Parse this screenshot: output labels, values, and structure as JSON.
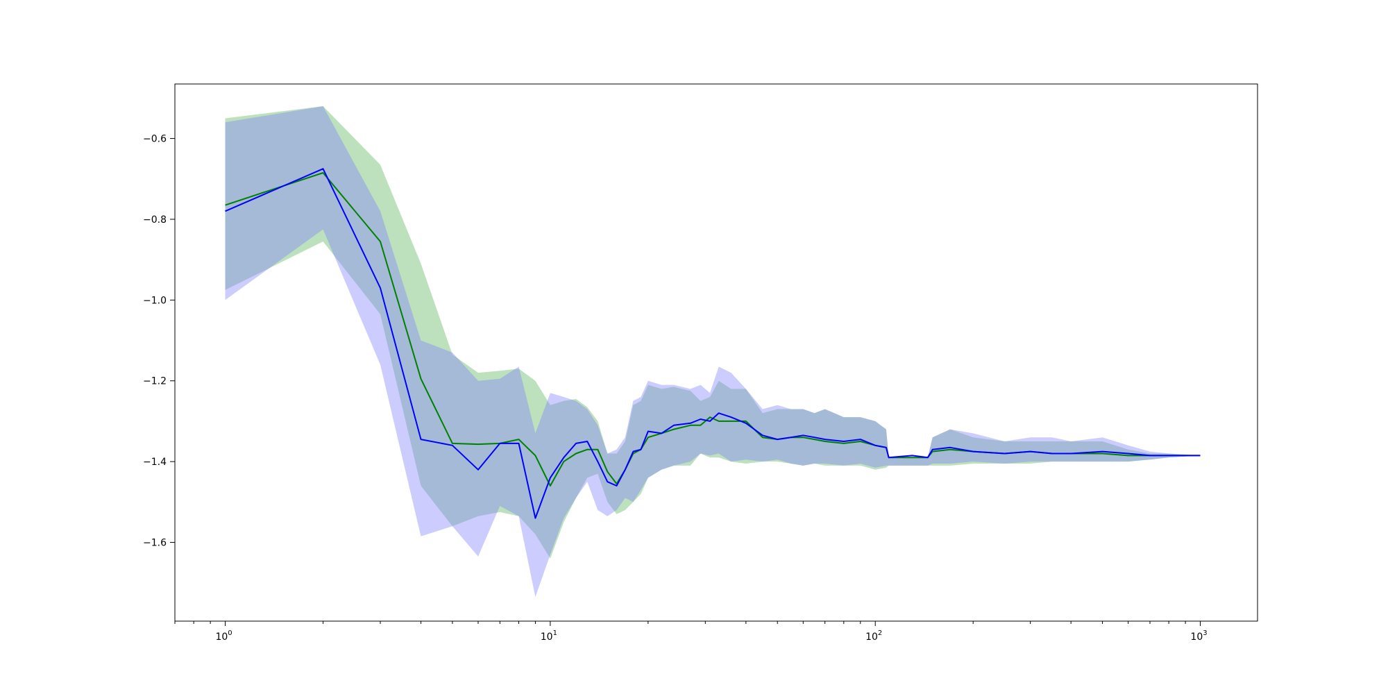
{
  "chart_data": {
    "type": "line",
    "title": "",
    "xlabel": "",
    "ylabel": "",
    "xscale": "log",
    "xlim": [
      0.7,
      1500
    ],
    "ylim": [
      -1.795,
      -0.465
    ],
    "grid": false,
    "legend": "none",
    "x_ticks": [
      {
        "value": 1,
        "base": "10",
        "exp": "0"
      },
      {
        "value": 10,
        "base": "10",
        "exp": "1"
      },
      {
        "value": 100,
        "base": "10",
        "exp": "2"
      },
      {
        "value": 1000,
        "base": "10",
        "exp": "3"
      }
    ],
    "y_ticks": [
      {
        "value": -0.6,
        "label": "−0.6"
      },
      {
        "value": -0.8,
        "label": "−0.8"
      },
      {
        "value": -1.0,
        "label": "−1.0"
      },
      {
        "value": -1.2,
        "label": "−1.2"
      },
      {
        "value": -1.4,
        "label": "−1.4"
      },
      {
        "value": -1.6,
        "label": "−1.6"
      }
    ],
    "series": [
      {
        "color": "#008000",
        "band_color": "#5bb35b",
        "x": [
          1,
          2,
          3,
          4,
          5,
          6,
          7,
          8,
          9,
          10,
          11,
          12,
          13,
          14,
          15,
          16,
          17,
          18,
          19,
          20,
          22,
          24,
          27,
          29,
          31,
          33,
          36,
          40,
          45,
          50,
          55,
          60,
          65,
          70,
          80,
          90,
          100,
          108,
          110,
          130,
          145,
          150,
          170,
          200,
          250,
          300,
          350,
          400,
          500,
          600,
          700,
          800,
          1000
        ],
        "values": [
          -0.765,
          -0.685,
          -0.855,
          -1.195,
          -1.355,
          -1.357,
          -1.355,
          -1.345,
          -1.385,
          -1.46,
          -1.4,
          -1.38,
          -1.37,
          -1.37,
          -1.425,
          -1.455,
          -1.42,
          -1.38,
          -1.37,
          -1.34,
          -1.33,
          -1.32,
          -1.31,
          -1.31,
          -1.29,
          -1.3,
          -1.3,
          -1.3,
          -1.34,
          -1.345,
          -1.34,
          -1.34,
          -1.345,
          -1.35,
          -1.355,
          -1.35,
          -1.36,
          -1.365,
          -1.39,
          -1.39,
          -1.39,
          -1.375,
          -1.37,
          -1.375,
          -1.38,
          -1.375,
          -1.38,
          -1.38,
          -1.38,
          -1.385,
          -1.385,
          -1.385,
          -1.385
        ],
        "lower": [
          -0.975,
          -0.855,
          -1.035,
          -1.46,
          -1.56,
          -1.535,
          -1.525,
          -1.535,
          -1.58,
          -1.64,
          -1.55,
          -1.49,
          -1.44,
          -1.43,
          -1.5,
          -1.53,
          -1.52,
          -1.5,
          -1.48,
          -1.44,
          -1.42,
          -1.41,
          -1.41,
          -1.38,
          -1.39,
          -1.39,
          -1.4,
          -1.405,
          -1.4,
          -1.4,
          -1.405,
          -1.41,
          -1.405,
          -1.41,
          -1.41,
          -1.41,
          -1.42,
          -1.415,
          -1.41,
          -1.41,
          -1.41,
          -1.41,
          -1.41,
          -1.405,
          -1.405,
          -1.405,
          -1.4,
          -1.4,
          -1.4,
          -1.4,
          -1.395,
          -1.39,
          -1.385
        ],
        "upper": [
          -0.55,
          -0.52,
          -0.665,
          -0.91,
          -1.135,
          -1.18,
          -1.175,
          -1.17,
          -1.2,
          -1.26,
          -1.25,
          -1.245,
          -1.265,
          -1.3,
          -1.38,
          -1.38,
          -1.35,
          -1.26,
          -1.25,
          -1.21,
          -1.22,
          -1.215,
          -1.225,
          -1.25,
          -1.24,
          -1.2,
          -1.22,
          -1.22,
          -1.28,
          -1.27,
          -1.27,
          -1.27,
          -1.28,
          -1.27,
          -1.29,
          -1.29,
          -1.3,
          -1.32,
          -1.39,
          -1.39,
          -1.39,
          -1.34,
          -1.32,
          -1.34,
          -1.35,
          -1.35,
          -1.35,
          -1.35,
          -1.35,
          -1.37,
          -1.38,
          -1.38,
          -1.385
        ]
      },
      {
        "color": "#0000ff",
        "band_color": "#8080ff",
        "x": [
          1,
          2,
          3,
          4,
          5,
          6,
          7,
          8,
          9,
          10,
          11,
          12,
          13,
          14,
          15,
          16,
          17,
          18,
          19,
          20,
          22,
          24,
          27,
          29,
          31,
          33,
          36,
          40,
          45,
          50,
          55,
          60,
          65,
          70,
          80,
          90,
          100,
          108,
          110,
          130,
          145,
          150,
          170,
          200,
          250,
          300,
          350,
          400,
          500,
          600,
          700,
          800,
          1000
        ],
        "values": [
          -0.78,
          -0.675,
          -0.97,
          -1.345,
          -1.36,
          -1.42,
          -1.355,
          -1.355,
          -1.54,
          -1.44,
          -1.39,
          -1.355,
          -1.35,
          -1.4,
          -1.45,
          -1.46,
          -1.42,
          -1.375,
          -1.37,
          -1.325,
          -1.33,
          -1.31,
          -1.305,
          -1.295,
          -1.3,
          -1.28,
          -1.29,
          -1.305,
          -1.335,
          -1.345,
          -1.34,
          -1.335,
          -1.34,
          -1.345,
          -1.35,
          -1.345,
          -1.36,
          -1.365,
          -1.39,
          -1.385,
          -1.39,
          -1.37,
          -1.365,
          -1.375,
          -1.38,
          -1.375,
          -1.38,
          -1.38,
          -1.375,
          -1.38,
          -1.385,
          -1.385,
          -1.385
        ],
        "lower": [
          -1.0,
          -0.825,
          -1.16,
          -1.585,
          -1.56,
          -1.635,
          -1.51,
          -1.535,
          -1.735,
          -1.63,
          -1.54,
          -1.49,
          -1.45,
          -1.52,
          -1.535,
          -1.52,
          -1.49,
          -1.5,
          -1.47,
          -1.44,
          -1.42,
          -1.41,
          -1.4,
          -1.38,
          -1.385,
          -1.38,
          -1.4,
          -1.395,
          -1.4,
          -1.395,
          -1.405,
          -1.41,
          -1.405,
          -1.405,
          -1.41,
          -1.405,
          -1.415,
          -1.41,
          -1.41,
          -1.41,
          -1.41,
          -1.405,
          -1.405,
          -1.4,
          -1.405,
          -1.4,
          -1.4,
          -1.4,
          -1.4,
          -1.4,
          -1.395,
          -1.39,
          -1.385
        ],
        "upper": [
          -0.56,
          -0.52,
          -0.78,
          -1.1,
          -1.13,
          -1.2,
          -1.195,
          -1.165,
          -1.33,
          -1.23,
          -1.24,
          -1.25,
          -1.27,
          -1.31,
          -1.38,
          -1.37,
          -1.34,
          -1.25,
          -1.24,
          -1.2,
          -1.21,
          -1.21,
          -1.22,
          -1.21,
          -1.23,
          -1.165,
          -1.18,
          -1.22,
          -1.27,
          -1.26,
          -1.27,
          -1.27,
          -1.28,
          -1.27,
          -1.29,
          -1.29,
          -1.3,
          -1.32,
          -1.39,
          -1.39,
          -1.39,
          -1.34,
          -1.32,
          -1.33,
          -1.35,
          -1.34,
          -1.34,
          -1.35,
          -1.34,
          -1.36,
          -1.375,
          -1.38,
          -1.385
        ]
      }
    ]
  }
}
